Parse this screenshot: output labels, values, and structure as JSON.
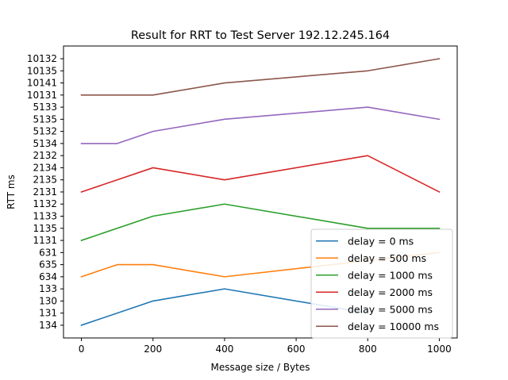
{
  "chart_data": {
    "type": "line",
    "title": "Result for RRT to Test Server 192.12.245.164",
    "xlabel": "Message size / Bytes",
    "ylabel": "RTT ms",
    "xlim": [
      -50,
      1050
    ],
    "xticks": [
      0,
      200,
      400,
      600,
      800,
      1000
    ],
    "y_categories": [
      "134",
      "131",
      "130",
      "133",
      "634",
      "635",
      "631",
      "1131",
      "1135",
      "1133",
      "1132",
      "2131",
      "2135",
      "2134",
      "2132",
      "5134",
      "5132",
      "5135",
      "5133",
      "10131",
      "10141",
      "10135",
      "10132"
    ],
    "legend_position": "lower right",
    "grid": false,
    "series": [
      {
        "name": "delay = 0 ms",
        "color": "#1f77b4",
        "x": [
          0,
          200,
          400,
          800
        ],
        "y": [
          "134",
          "130",
          "133",
          "131"
        ]
      },
      {
        "name": "delay = 500 ms",
        "color": "#ff7f0e",
        "x": [
          0,
          100,
          200,
          400,
          1000
        ],
        "y": [
          "634",
          "635",
          "635",
          "634",
          "631"
        ]
      },
      {
        "name": "delay = 1000 ms",
        "color": "#2ca02c",
        "x": [
          0,
          200,
          400,
          800,
          1000
        ],
        "y": [
          "1131",
          "1133",
          "1132",
          "1135",
          "1135"
        ]
      },
      {
        "name": "delay = 2000 ms",
        "color": "#d62728",
        "x": [
          0,
          200,
          400,
          800,
          1000
        ],
        "y": [
          "2131",
          "2134",
          "2135",
          "2132",
          "2131"
        ]
      },
      {
        "name": "delay = 5000 ms",
        "color": "#9467bd",
        "x": [
          0,
          100,
          200,
          400,
          800,
          1000
        ],
        "y": [
          "5134",
          "5134",
          "5132",
          "5135",
          "5133",
          "5135"
        ]
      },
      {
        "name": "delay = 10000 ms",
        "color": "#8c564b",
        "x": [
          0,
          200,
          400,
          800,
          1000
        ],
        "y": [
          "10131",
          "10131",
          "10141",
          "10135",
          "10132"
        ]
      }
    ]
  }
}
